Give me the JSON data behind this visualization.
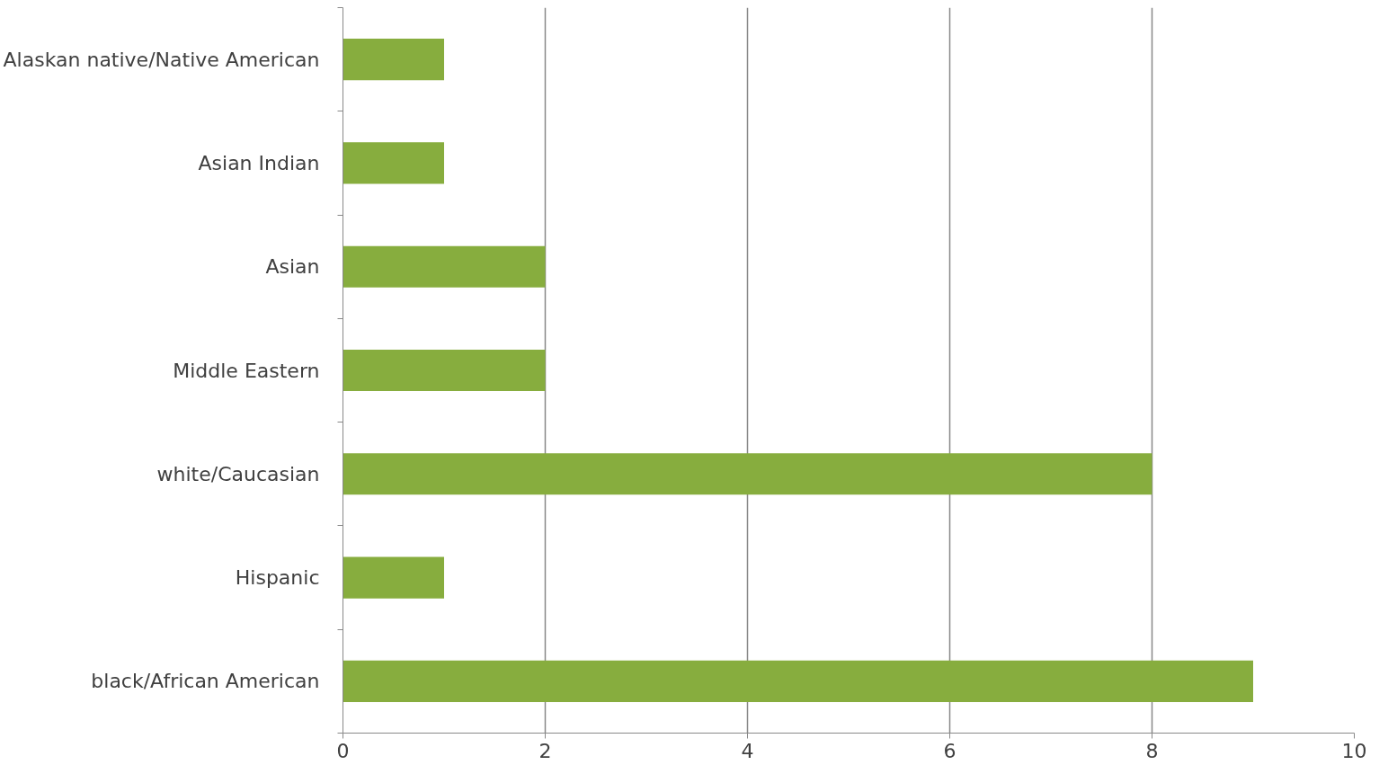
{
  "chart_data": {
    "type": "bar",
    "orientation": "horizontal",
    "categories": [
      "Alaskan native/Native American",
      "Asian Indian",
      "Asian",
      "Middle Eastern",
      "white/Caucasian",
      "Hispanic",
      "black/African American"
    ],
    "values": [
      1,
      1,
      2,
      2,
      8,
      1,
      9
    ],
    "color": "#87ad3e",
    "xlim": [
      0,
      10
    ],
    "xticks": [
      0,
      2,
      4,
      6,
      8,
      10
    ],
    "grid": "x"
  }
}
